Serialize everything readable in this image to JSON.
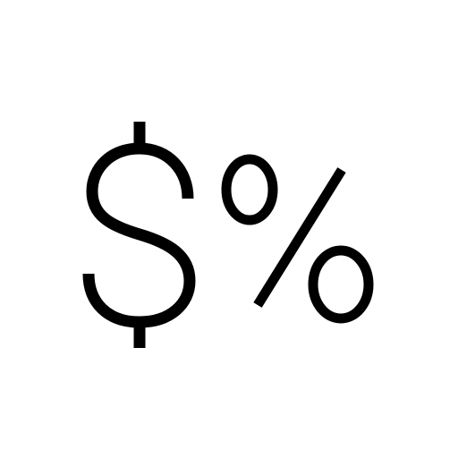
{
  "icon": {
    "semantic": "dollar-percent-icon",
    "glyphs": [
      "$",
      "%"
    ],
    "stroke_color": "#000000",
    "background_color": "#ffffff"
  }
}
